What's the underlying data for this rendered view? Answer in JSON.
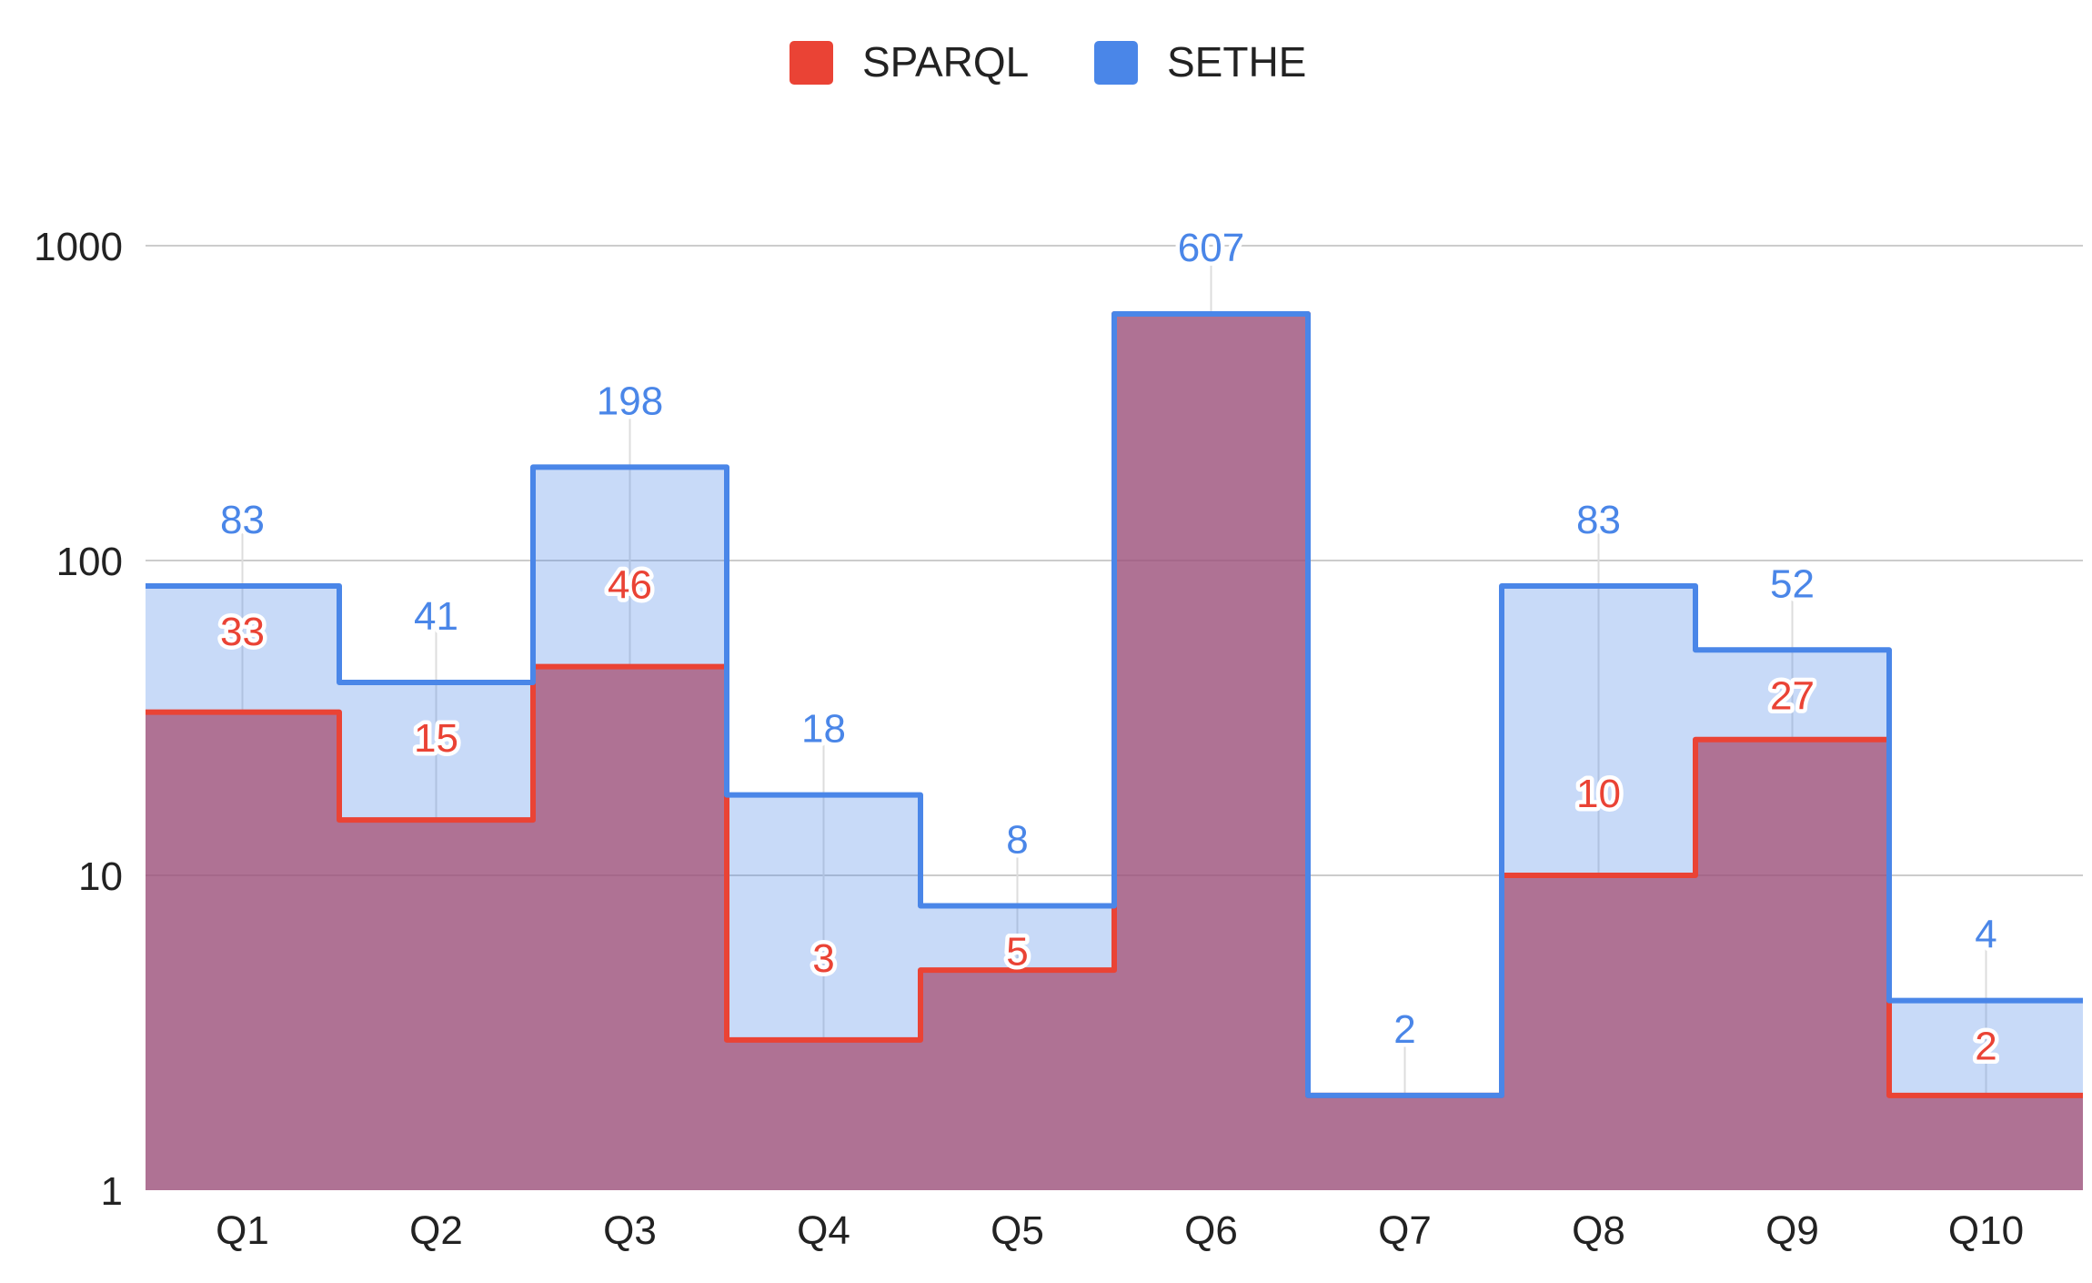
{
  "chart_data": {
    "type": "area",
    "scale": "log",
    "categories": [
      "Q1",
      "Q2",
      "Q3",
      "Q4",
      "Q5",
      "Q6",
      "Q7",
      "Q8",
      "Q9",
      "Q10"
    ],
    "series": [
      {
        "name": "SPARQL",
        "color": "#ea4335",
        "values": [
          33,
          15,
          46,
          3,
          5,
          607,
          2,
          10,
          27,
          2
        ]
      },
      {
        "name": "SETHE",
        "color": "#4a86e8",
        "values": [
          83,
          41,
          198,
          18,
          8,
          607,
          2,
          83,
          52,
          4
        ]
      }
    ],
    "sparql_labels": [
      "33",
      "15",
      "46",
      "3",
      "5",
      "",
      "",
      "10",
      "27",
      "2"
    ],
    "sethe_labels": [
      "83",
      "41",
      "198",
      "18",
      "8",
      "607",
      "2",
      "83",
      "52",
      "4"
    ],
    "y_ticks": [
      1,
      10,
      100,
      1000
    ],
    "y_tick_labels": [
      "1",
      "10",
      "100",
      "1000"
    ],
    "ylim": [
      1,
      1000
    ],
    "title": "",
    "xlabel": "",
    "ylabel": "",
    "legend_position": "top-center"
  }
}
